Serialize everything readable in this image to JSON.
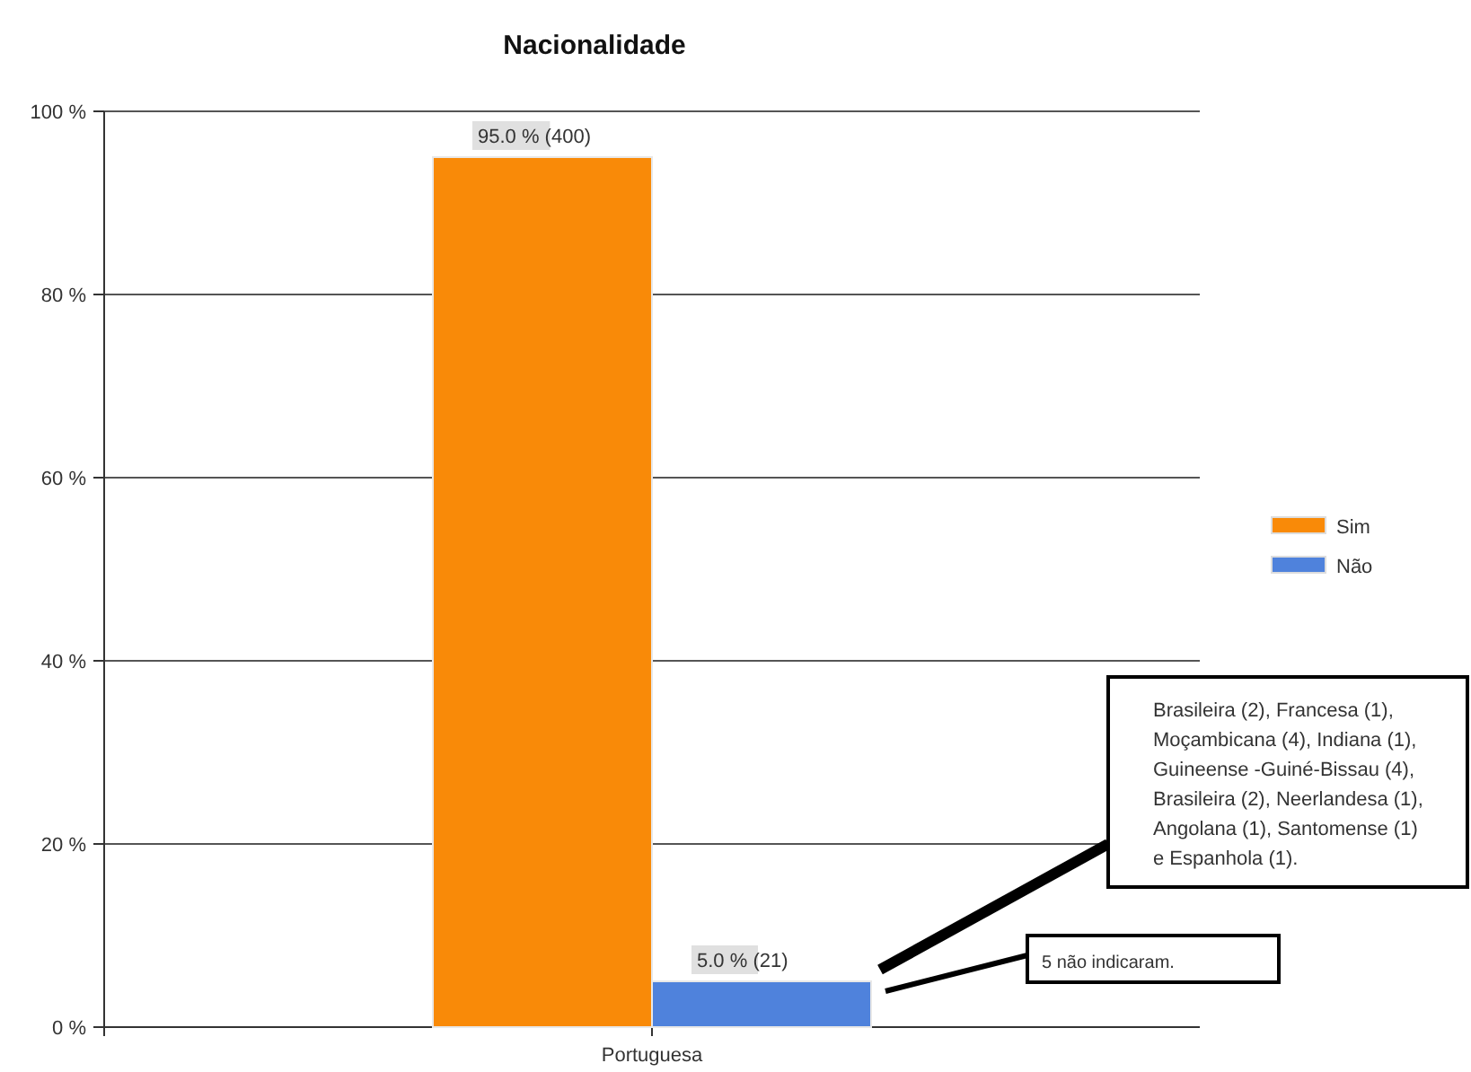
{
  "chart_data": {
    "type": "bar",
    "title": "Nacionalidade",
    "categories": [
      "Portuguesa"
    ],
    "series": [
      {
        "name": "Sim",
        "color": "#f98a08",
        "values": [
          95.0
        ],
        "value_labels": [
          "95.0 % (400)"
        ]
      },
      {
        "name": "Não",
        "color": "#4f82dc",
        "values": [
          5.0
        ],
        "value_labels": [
          "5.0 % (21)"
        ]
      }
    ],
    "ylim": [
      0,
      100
    ],
    "yticks": [
      {
        "value": 0,
        "label": "0 %"
      },
      {
        "value": 20,
        "label": "20 %"
      },
      {
        "value": 40,
        "label": "40 %"
      },
      {
        "value": 60,
        "label": "60 %"
      },
      {
        "value": 80,
        "label": "80 %"
      },
      {
        "value": 100,
        "label": "100 %"
      }
    ],
    "grid": "y",
    "legend": "right",
    "annotations": [
      "Brasileira (2), Francesa (1),\nMoçambicana (4), Indiana (1),\nGuineense -Guiné-Bissau (4),\nBrasileira (2), Neerlandesa (1),\nAngolana (1), Santomense (1)\ne Espanhola (1).",
      "5 não indicaram."
    ]
  }
}
